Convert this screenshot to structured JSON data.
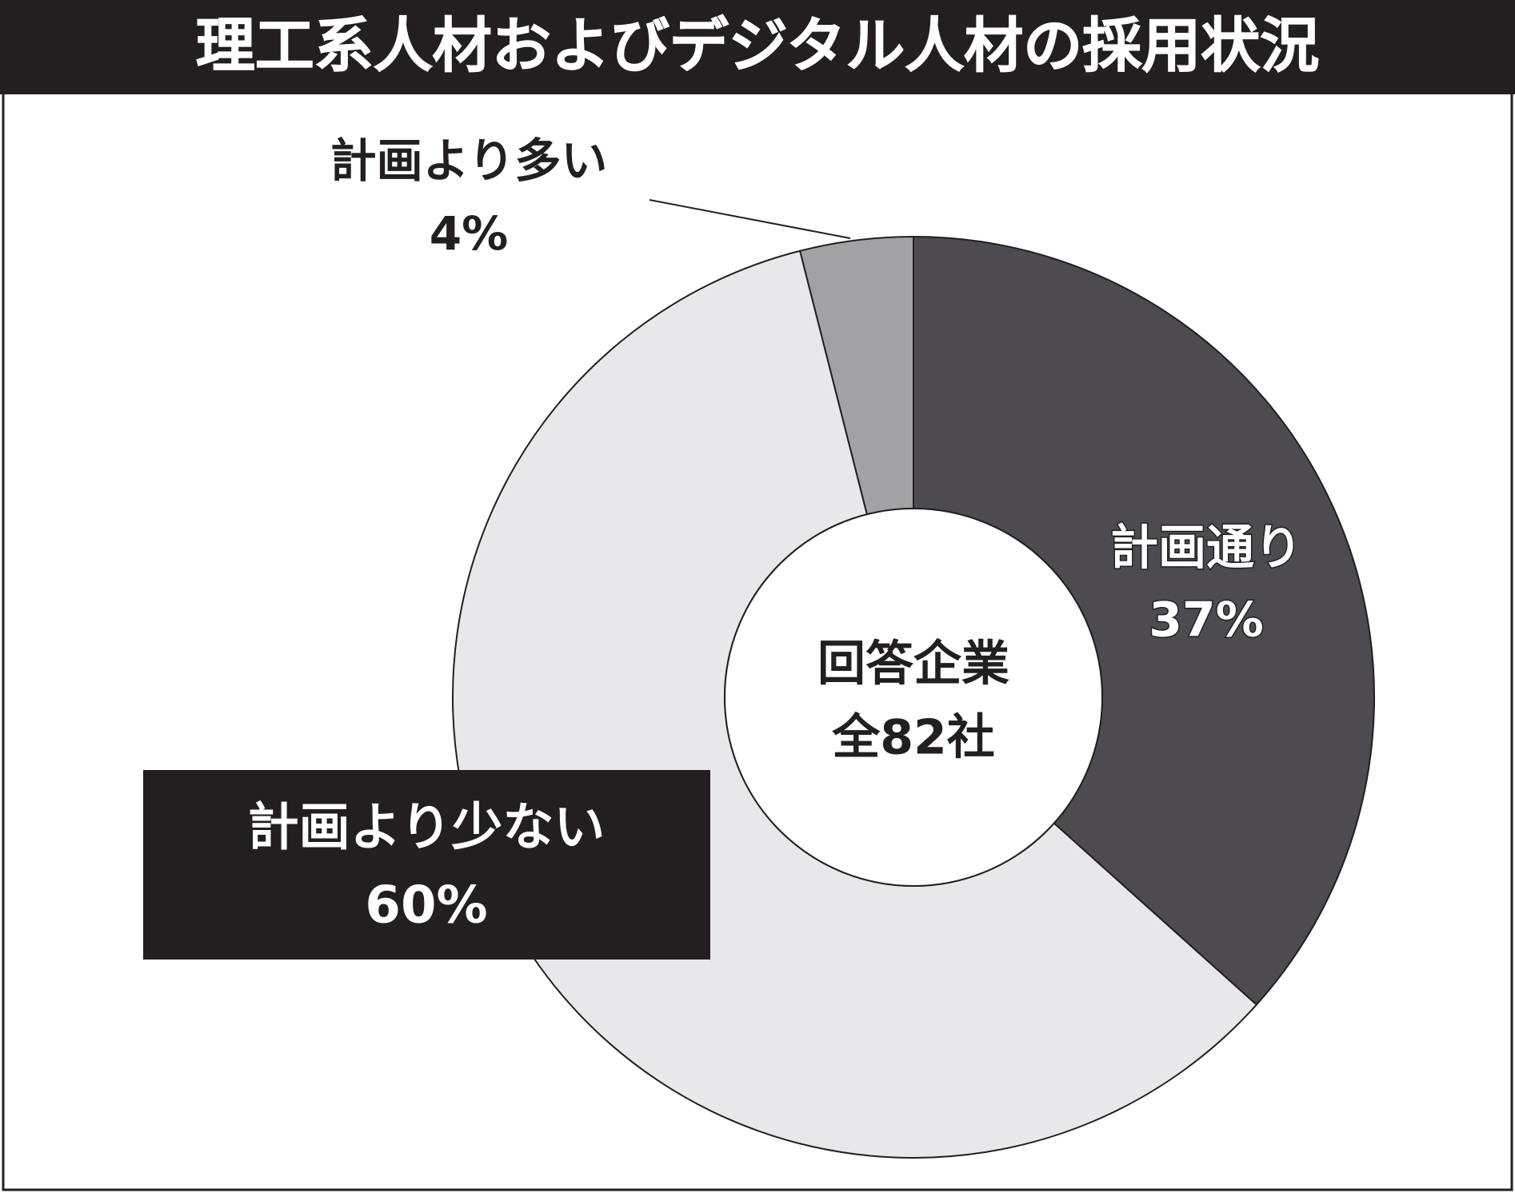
{
  "chart_data": {
    "type": "donut",
    "title": "理工系人材およびデジタル人材の採用状況",
    "categories": [
      "計画通り",
      "計画より少ない",
      "計画より多い"
    ],
    "values": [
      37,
      60,
      4
    ],
    "value_labels": [
      "37%",
      "60%",
      "4%"
    ],
    "colors": [
      "#4d4b4f",
      "#e8e8ea",
      "#a2a2a4"
    ],
    "center_text": [
      "回答企業",
      "全82社"
    ]
  }
}
